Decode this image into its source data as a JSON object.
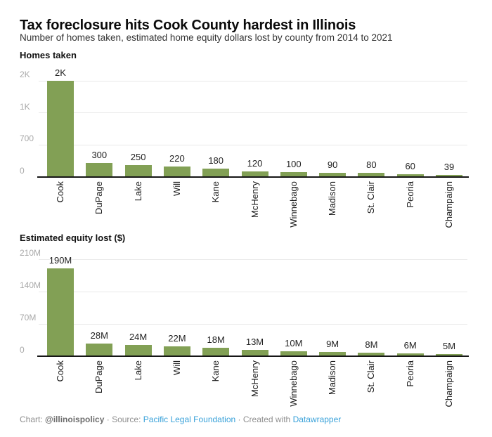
{
  "page": {
    "title": "Tax foreclosure hits Cook County hardest in Illinois",
    "subtitle": "Number of homes taken, estimated home equity dollars lost by county from 2014 to 2021"
  },
  "colors": {
    "bar": "#82a055",
    "gridline": "#e9e9e9",
    "axis_line": "#161616",
    "tick_label": "#a9a9a9",
    "value_label": "#222222",
    "category_label": "#1a1a1a",
    "link": "#38a1d9",
    "footer_text": "#8f8f8f"
  },
  "chart_data": [
    {
      "type": "bar",
      "title": "Homes taken",
      "categories": [
        "Cook",
        "DuPage",
        "Lake",
        "Will",
        "Kane",
        "McHenry",
        "Winnebago",
        "Madison",
        "St. Clair",
        "Peoria",
        "Champaign"
      ],
      "values": [
        2000,
        300,
        250,
        220,
        180,
        120,
        100,
        90,
        80,
        60,
        39
      ],
      "value_labels": [
        "2K",
        "300",
        "250",
        "220",
        "180",
        "120",
        "100",
        "90",
        "80",
        "60",
        "39"
      ],
      "yticks": [
        {
          "label": "0",
          "value": 0
        },
        {
          "label": "700",
          "value": 700
        },
        {
          "label": "1K",
          "value": 1000
        },
        {
          "label": "2K",
          "value": 2000
        }
      ],
      "ylim": [
        0,
        2000
      ],
      "xlabel": "",
      "ylabel": "",
      "grid": "on",
      "legend": "none",
      "scale_note": "ticks rendered equally spaced (non-linear axis)"
    },
    {
      "type": "bar",
      "title": "Estimated equity lost ($)",
      "unit": "M",
      "categories": [
        "Cook",
        "DuPage",
        "Lake",
        "Will",
        "Kane",
        "McHenry",
        "Winnebago",
        "Madison",
        "St. Clair",
        "Peoria",
        "Champaign"
      ],
      "values": [
        190,
        28,
        24,
        22,
        18,
        13,
        10,
        9,
        8,
        6,
        5
      ],
      "value_labels": [
        "190M",
        "28M",
        "24M",
        "22M",
        "18M",
        "13M",
        "10M",
        "9M",
        "8M",
        "6M",
        "5M"
      ],
      "yticks": [
        {
          "label": "0",
          "value": 0
        },
        {
          "label": "70M",
          "value": 70
        },
        {
          "label": "140M",
          "value": 140
        },
        {
          "label": "210M",
          "value": 210
        }
      ],
      "ylim": [
        0,
        210
      ],
      "xlabel": "",
      "ylabel": "",
      "grid": "on",
      "legend": "none",
      "scale_note": "linear axis"
    }
  ],
  "footer": {
    "parts": [
      {
        "text": "Chart: ",
        "style": "plain",
        "name": "footer-chart-label"
      },
      {
        "text": "@illinoispolicy",
        "style": "bold",
        "name": "footer-chart-credit"
      },
      {
        "text": " · Source: ",
        "style": "plain",
        "name": "footer-source-label"
      },
      {
        "text": "Pacific Legal Foundation",
        "style": "link",
        "name": "footer-source-link"
      },
      {
        "text": " · Created with ",
        "style": "plain",
        "name": "footer-created-with-label"
      },
      {
        "text": "Datawrapper",
        "style": "link",
        "name": "footer-datawrapper-link"
      }
    ]
  }
}
